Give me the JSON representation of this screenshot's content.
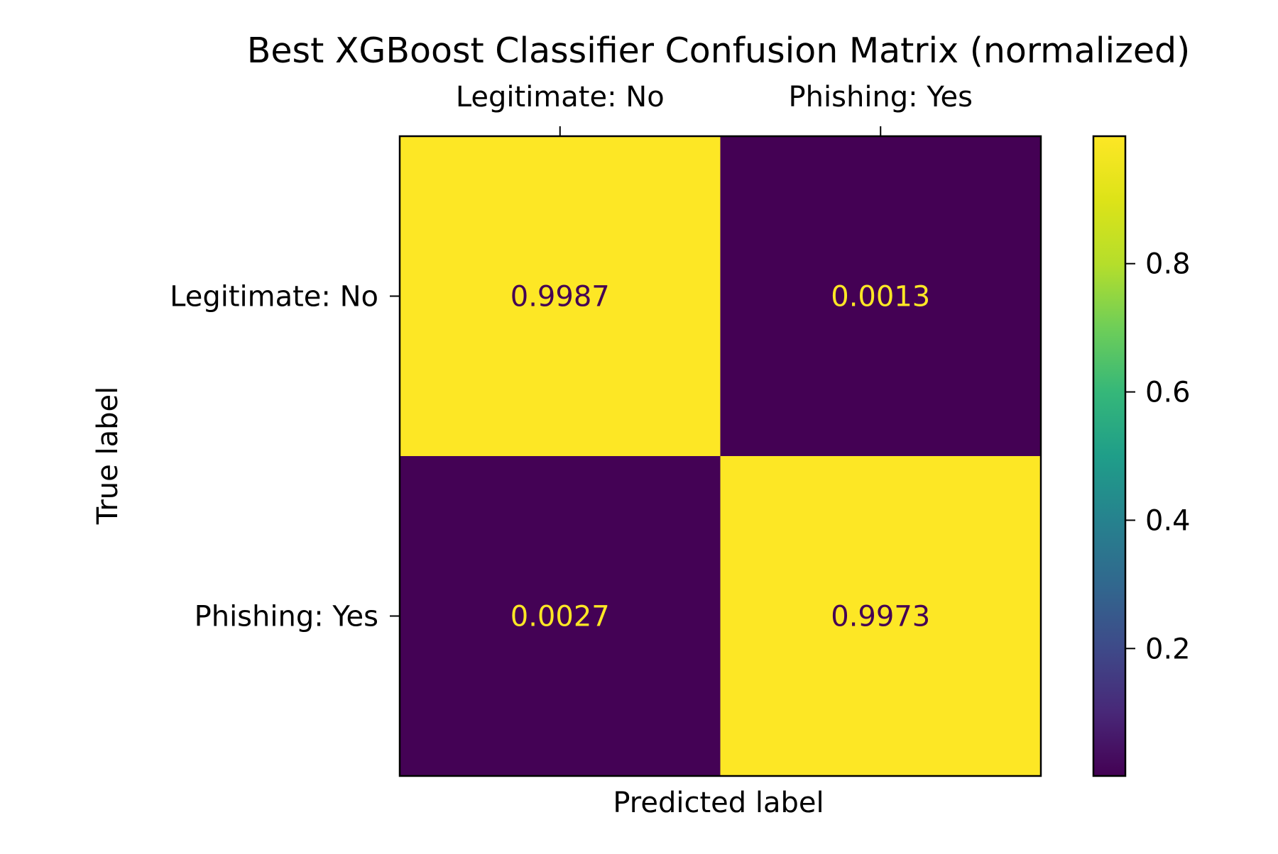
{
  "chart_data": {
    "type": "heatmap",
    "title": "Best XGBoost Classifier Confusion Matrix (normalized)",
    "xlabel": "Predicted label",
    "ylabel": "True label",
    "x_categories": [
      "Legitimate: No",
      "Phishing: Yes"
    ],
    "y_categories": [
      "Legitimate: No",
      "Phishing: Yes"
    ],
    "values": [
      [
        0.9987,
        0.0013
      ],
      [
        0.0027,
        0.9973
      ]
    ],
    "cell_labels": [
      [
        "0.9987",
        "0.0013"
      ],
      [
        "0.0027",
        "0.9973"
      ]
    ],
    "colormap": "viridis",
    "colorbar": {
      "range": [
        0.0013,
        0.9987
      ],
      "ticks": [
        0.2,
        0.4,
        0.6,
        0.8
      ],
      "tick_labels": [
        "0.2",
        "0.4",
        "0.6",
        "0.8"
      ]
    },
    "colors": {
      "low": "#440154",
      "high": "#fde725",
      "text_on_light": "#440154",
      "text_on_dark": "#fde725"
    },
    "x_tick_position": "top",
    "grid": false
  }
}
